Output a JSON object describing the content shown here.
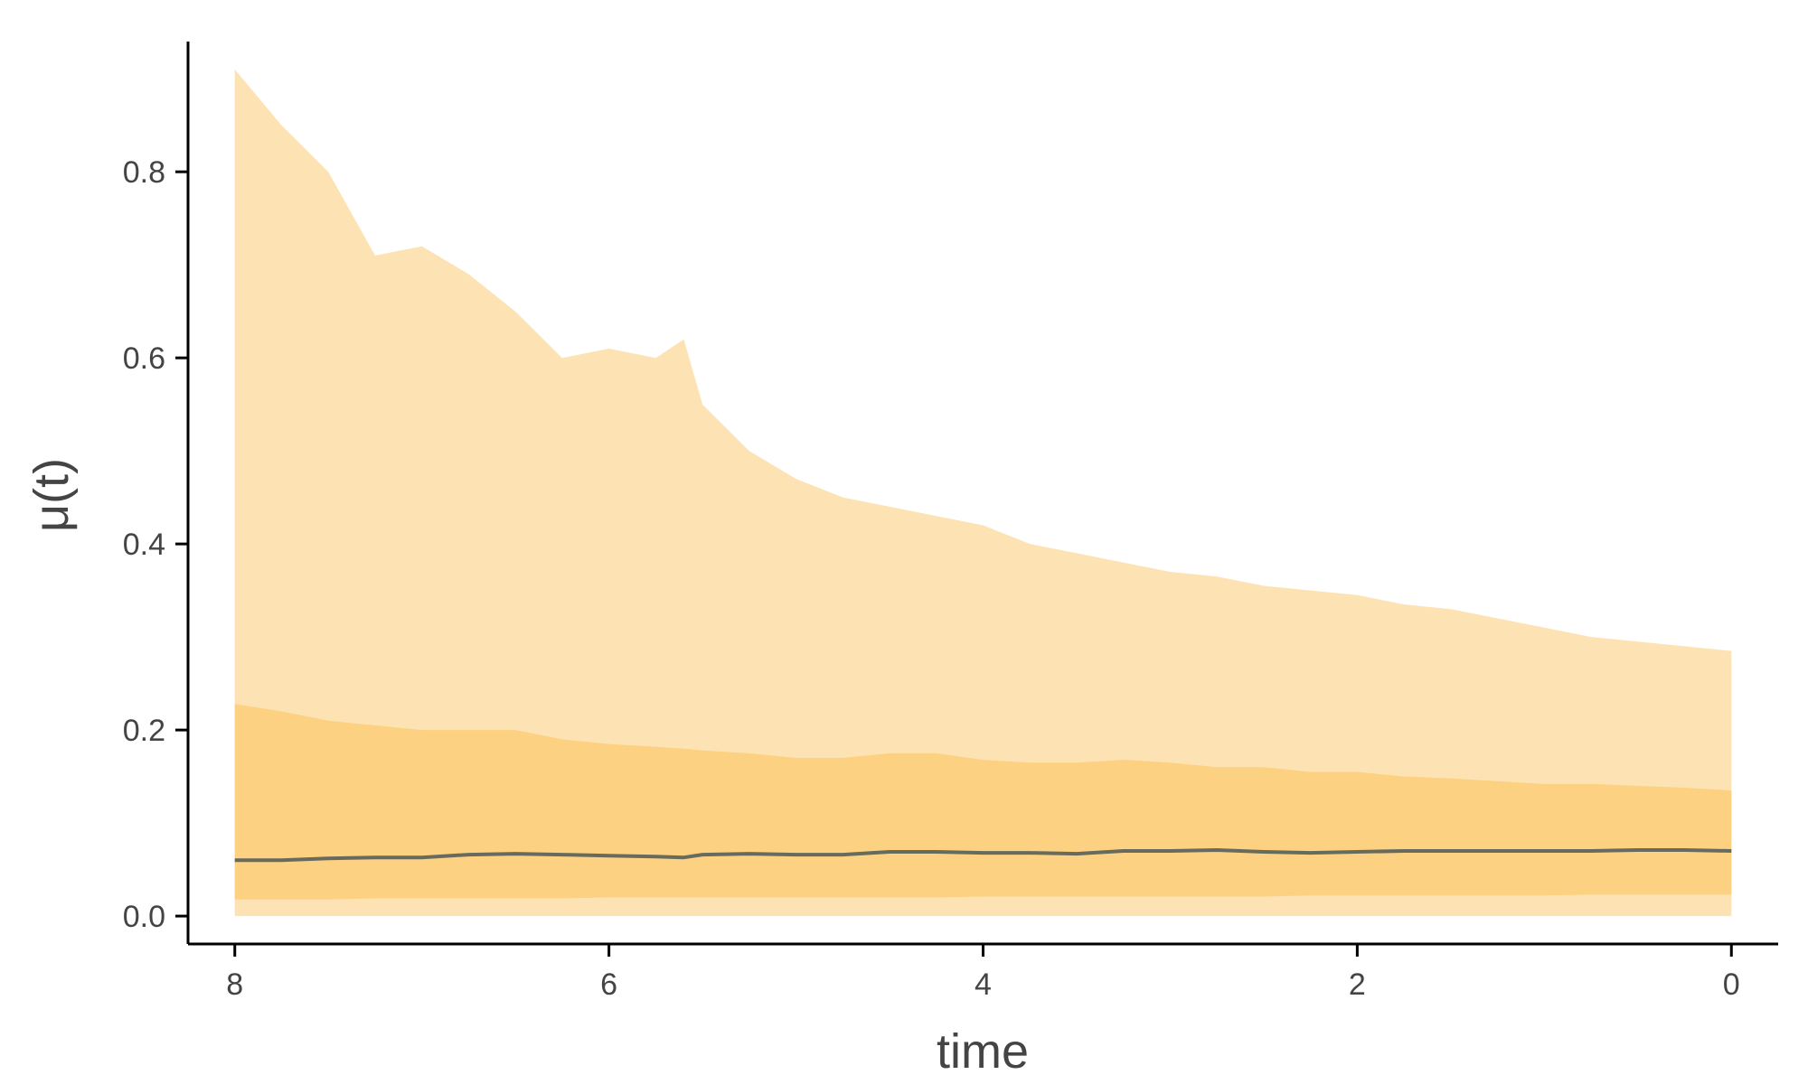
{
  "chart_data": {
    "type": "area",
    "title": "",
    "xlabel": "time",
    "ylabel": "μ(t)",
    "x_reversed": true,
    "xlim": [
      8.25,
      -0.25
    ],
    "ylim": [
      -0.03,
      0.94
    ],
    "xticks": [
      8,
      6,
      4,
      2,
      0
    ],
    "xtick_labels": [
      "8",
      "6",
      "4",
      "2",
      "0"
    ],
    "yticks": [
      0.0,
      0.2,
      0.4,
      0.6,
      0.8
    ],
    "ytick_labels": [
      "0.0",
      "0.2",
      "0.4",
      "0.6",
      "0.8"
    ],
    "grid": false,
    "colors": {
      "outer_band": "#fde3b3",
      "inner_band": "#fdd182",
      "median_line": "#666b5e"
    },
    "x": [
      8.0,
      7.75,
      7.5,
      7.25,
      7.0,
      6.75,
      6.5,
      6.25,
      6.0,
      5.75,
      5.6,
      5.5,
      5.25,
      5.0,
      4.75,
      4.5,
      4.25,
      4.0,
      3.75,
      3.5,
      3.25,
      3.0,
      2.75,
      2.5,
      2.25,
      2.0,
      1.75,
      1.5,
      1.25,
      1.0,
      0.75,
      0.5,
      0.25,
      0.0
    ],
    "outer_upper": [
      0.91,
      0.85,
      0.8,
      0.71,
      0.72,
      0.69,
      0.65,
      0.6,
      0.61,
      0.6,
      0.62,
      0.55,
      0.5,
      0.47,
      0.45,
      0.44,
      0.43,
      0.42,
      0.4,
      0.39,
      0.38,
      0.37,
      0.365,
      0.355,
      0.35,
      0.345,
      0.335,
      0.33,
      0.32,
      0.31,
      0.3,
      0.295,
      0.29,
      0.285
    ],
    "outer_lower": [
      0.0,
      0.0,
      0.0,
      0.0,
      0.0,
      0.0,
      0.0,
      0.0,
      0.0,
      0.0,
      0.0,
      0.0,
      0.0,
      0.0,
      0.0,
      0.0,
      0.0,
      0.0,
      0.0,
      0.0,
      0.0,
      0.0,
      0.0,
      0.0,
      0.0,
      0.0,
      0.0,
      0.0,
      0.0,
      0.0,
      0.0,
      0.0,
      0.0,
      0.0
    ],
    "inner_upper": [
      0.228,
      0.22,
      0.21,
      0.205,
      0.2,
      0.2,
      0.2,
      0.19,
      0.185,
      0.182,
      0.18,
      0.178,
      0.175,
      0.17,
      0.17,
      0.175,
      0.175,
      0.168,
      0.165,
      0.165,
      0.168,
      0.165,
      0.16,
      0.16,
      0.155,
      0.155,
      0.15,
      0.148,
      0.145,
      0.142,
      0.142,
      0.14,
      0.138,
      0.135
    ],
    "inner_lower": [
      0.018,
      0.018,
      0.018,
      0.019,
      0.019,
      0.019,
      0.019,
      0.019,
      0.02,
      0.02,
      0.02,
      0.02,
      0.02,
      0.02,
      0.02,
      0.02,
      0.02,
      0.021,
      0.021,
      0.021,
      0.021,
      0.021,
      0.021,
      0.021,
      0.022,
      0.022,
      0.022,
      0.022,
      0.022,
      0.022,
      0.023,
      0.023,
      0.023,
      0.023
    ],
    "median": [
      0.06,
      0.06,
      0.062,
      0.063,
      0.063,
      0.066,
      0.067,
      0.066,
      0.065,
      0.064,
      0.063,
      0.066,
      0.067,
      0.066,
      0.066,
      0.069,
      0.069,
      0.068,
      0.068,
      0.067,
      0.07,
      0.07,
      0.071,
      0.069,
      0.068,
      0.069,
      0.07,
      0.07,
      0.07,
      0.07,
      0.07,
      0.071,
      0.071,
      0.07
    ]
  }
}
